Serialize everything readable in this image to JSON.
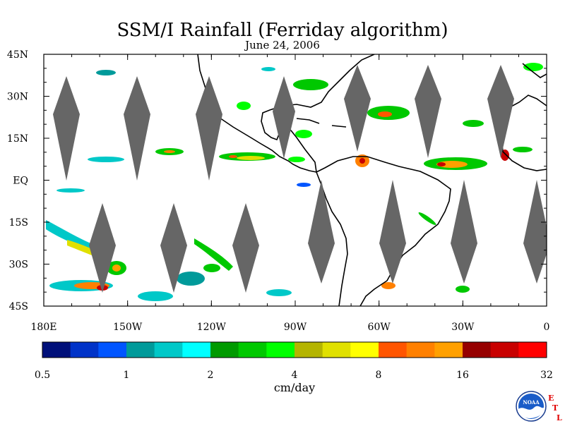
{
  "title": "SSM/I Rainfall (Ferriday algorithm)",
  "subtitle": "June 24, 2006",
  "units": "cm/day",
  "lat_labels": [
    "45N",
    "30N",
    "15N",
    "EQ",
    "15S",
    "30S",
    "45S"
  ],
  "lon_labels": [
    "180E",
    "150W",
    "120W",
    "90W",
    "60W",
    "30W",
    "0"
  ],
  "colorbar": {
    "tick_labels": [
      "0.5",
      "1",
      "2",
      "4",
      "8",
      "16",
      "32"
    ],
    "colors": [
      "#00107a",
      "#0033c8",
      "#0055ff",
      "#009a9a",
      "#00c8c8",
      "#00ffff",
      "#009a00",
      "#00c800",
      "#00ff00",
      "#b4b400",
      "#e0e000",
      "#ffff00",
      "#ff5500",
      "#ff8000",
      "#ffa000",
      "#960000",
      "#c80000",
      "#ff0000"
    ]
  },
  "colors": {
    "swath_gap": "#666666",
    "coastline": "#000000"
  },
  "logo": {
    "icon": "noaa-logo-icon",
    "text": "NOAA",
    "letters": [
      "E",
      "T",
      "L"
    ]
  }
}
